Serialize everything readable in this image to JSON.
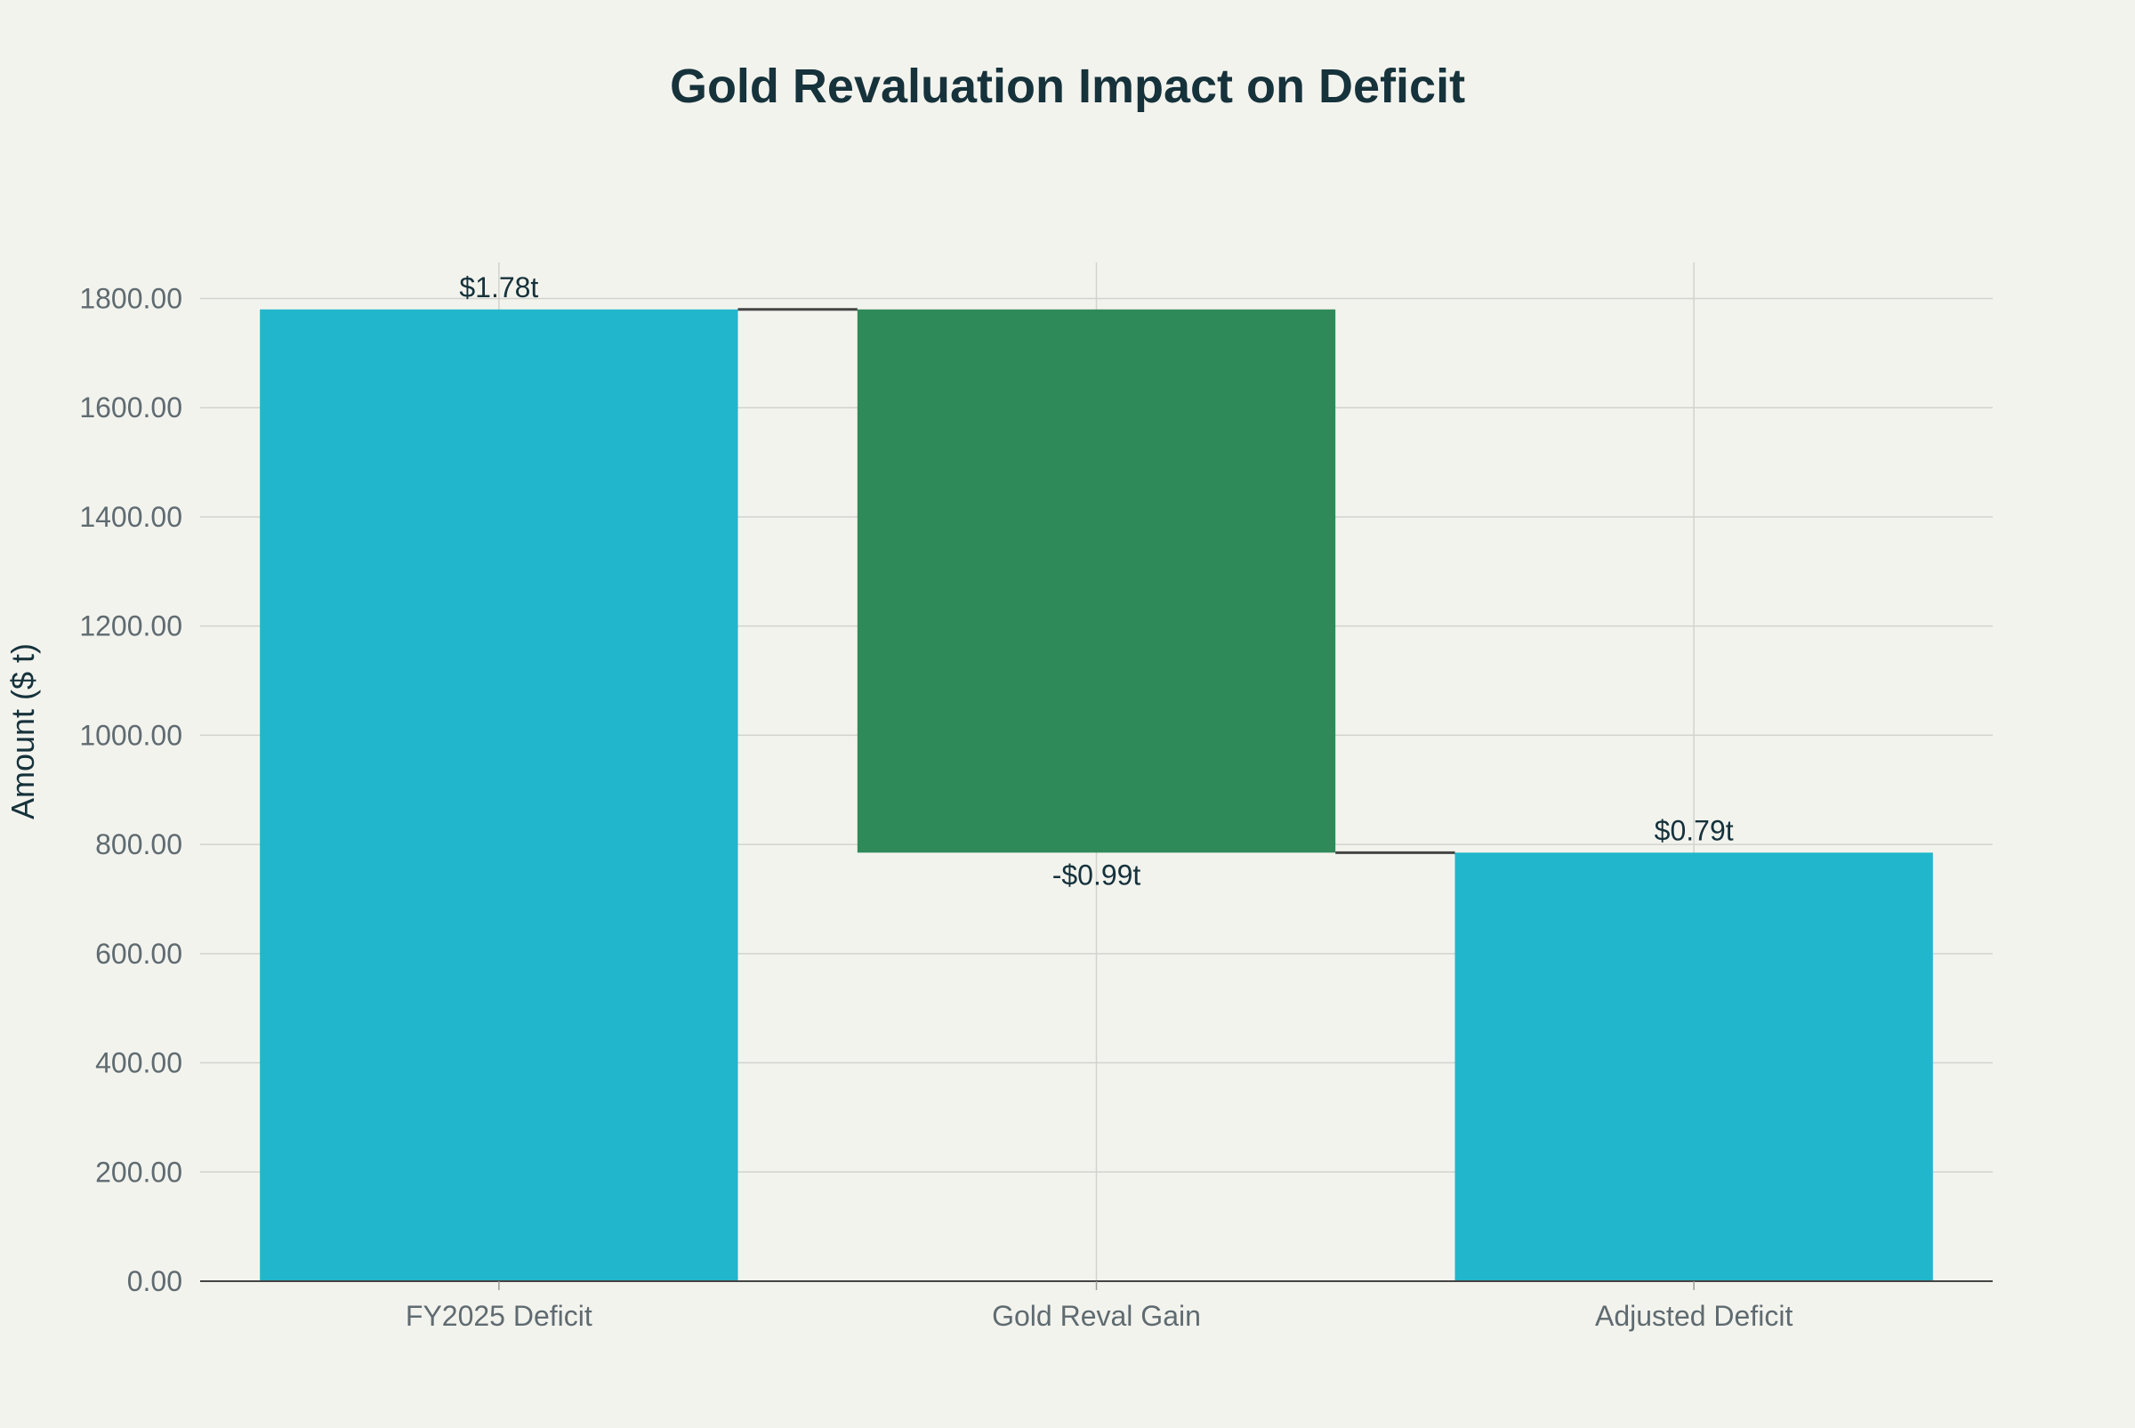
{
  "chart_data": {
    "type": "waterfall",
    "title": "Gold Revaluation Impact on Deficit",
    "xlabel": "",
    "ylabel": "Amount ($ t)",
    "ylim": [
      0,
      1866
    ],
    "yticks": [
      0,
      200,
      400,
      600,
      800,
      1000,
      1200,
      1400,
      1600,
      1800
    ],
    "ytick_labels": [
      "0.00",
      "200.00",
      "400.00",
      "600.00",
      "800.00",
      "1000.00",
      "1200.00",
      "1400.00",
      "1600.00",
      "1800.00"
    ],
    "grid": true,
    "categories": [
      "FY2025 Deficit",
      "Gold Reval Gain",
      "Adjusted Deficit"
    ],
    "bars": [
      {
        "category": "FY2025 Deficit",
        "measure": "absolute",
        "value": 1780,
        "start": 0,
        "end": 1780,
        "label": "$1.78t",
        "label_position": "above",
        "color": "#21b6cb"
      },
      {
        "category": "Gold Reval Gain",
        "measure": "relative",
        "value": -995,
        "start": 1780,
        "end": 785,
        "label": "-$0.99t",
        "label_position": "below",
        "color": "#2f8a59"
      },
      {
        "category": "Adjusted Deficit",
        "measure": "total",
        "value": 785,
        "start": 0,
        "end": 785,
        "label": "$0.79t",
        "label_position": "above",
        "color": "#21b6cb"
      }
    ],
    "connector_color": "#444444"
  }
}
